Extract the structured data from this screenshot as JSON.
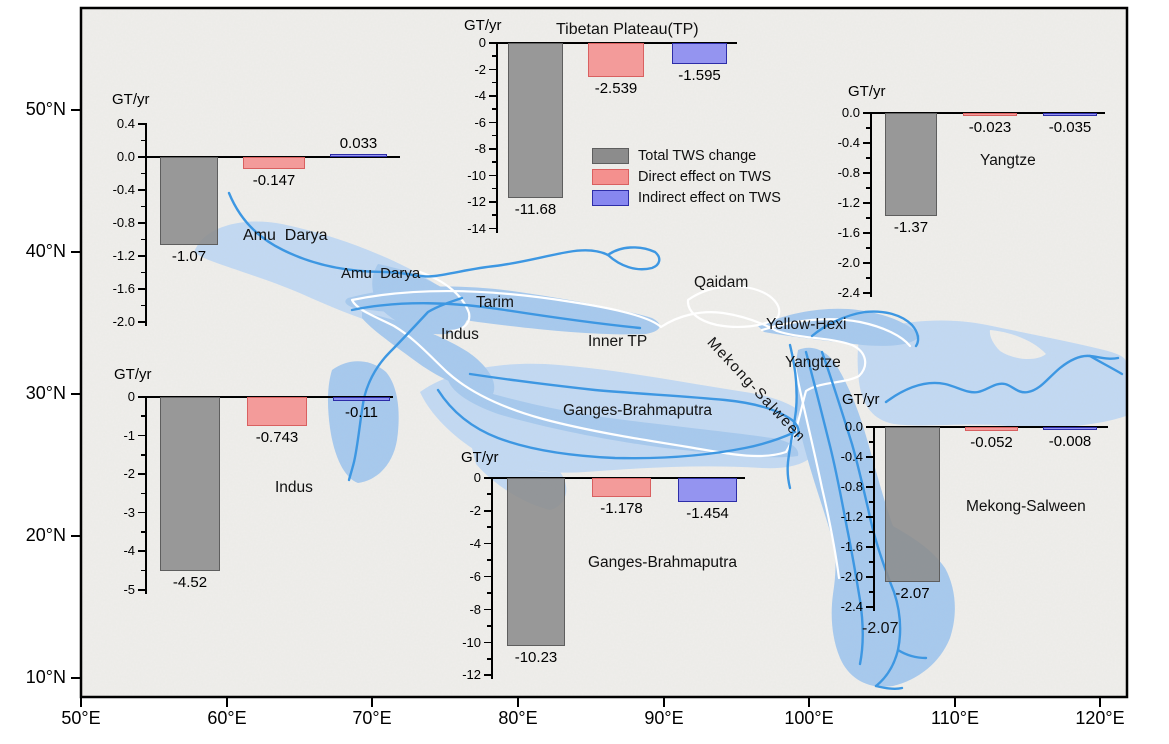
{
  "figure": {
    "x_axis": {
      "ticks": [
        "50°E",
        "60°E",
        "70°E",
        "80°E",
        "90°E",
        "100°E",
        "110°E",
        "120°E"
      ]
    },
    "y_axis": {
      "ticks": [
        "50°N",
        "40°N",
        "30°N",
        "20°N",
        "10°N"
      ]
    },
    "unit_label": "GT/yr"
  },
  "legend": {
    "items": [
      {
        "id": "total",
        "label": "Total TWS change",
        "fill": "#8C8C8C",
        "border": "#5E5E5E"
      },
      {
        "id": "direct",
        "label": "Direct effect on TWS",
        "fill": "#F4908E",
        "border": "#D96060"
      },
      {
        "id": "indirect",
        "label": "Indirect effect on TWS",
        "fill": "#8787F0",
        "border": "#2D2DA8"
      }
    ]
  },
  "map": {
    "labels": [
      {
        "id": "amu_darya_river",
        "text": "Amu  Darya"
      },
      {
        "id": "tarim",
        "text": "Tarim"
      },
      {
        "id": "indus",
        "text": "Indus"
      },
      {
        "id": "inner_tp",
        "text": "Inner TP"
      },
      {
        "id": "qaidam",
        "text": "Qaidam"
      },
      {
        "id": "yellow_hexi",
        "text": "Yellow-Hexi"
      },
      {
        "id": "yangtze",
        "text": "Yangtze"
      },
      {
        "id": "mekong_salween",
        "text": "Mekong-Salween"
      },
      {
        "id": "ganges_brahmaputra",
        "text": "Ganges-Brahmaputra"
      }
    ],
    "annotations": [
      {
        "id": "mekong_basin_value",
        "text": "-2.07"
      }
    ],
    "colors": {
      "terrain": "#EFEEEB",
      "basin_light": "#C2D9F3",
      "basin_medium": "#A6C9EE",
      "river": "#3D97E2",
      "boundary": "#FFFFFF"
    }
  },
  "chart_data": [
    {
      "id": "amu_darya",
      "type": "bar",
      "unit": "GT/yr",
      "region_label": "Amu  Darya",
      "ylim": [
        0.4,
        -2.0
      ],
      "yticks": [
        "0.4",
        "0.0",
        "-0.4",
        "-0.8",
        "-1.2",
        "-1.6",
        "-2.0"
      ],
      "series": [
        {
          "name": "Total TWS change",
          "value": -1.07,
          "label": "-1.07"
        },
        {
          "name": "Direct effect on TWS",
          "value": -0.147,
          "label": "-0.147"
        },
        {
          "name": "Indirect effect on TWS",
          "value": 0.033,
          "label": "0.033"
        }
      ]
    },
    {
      "id": "tibetan_plateau",
      "type": "bar",
      "unit": "GT/yr",
      "title": "Tibetan Plateau(TP)",
      "ylim": [
        0,
        -14
      ],
      "yticks": [
        "0",
        "-2",
        "-4",
        "-6",
        "-8",
        "-10",
        "-12",
        "-14"
      ],
      "series": [
        {
          "name": "Total TWS change",
          "value": -11.68,
          "label": "-11.68"
        },
        {
          "name": "Direct effect on TWS",
          "value": -2.539,
          "label": "-2.539"
        },
        {
          "name": "Indirect effect on TWS",
          "value": -1.595,
          "label": "-1.595"
        }
      ]
    },
    {
      "id": "yangtze",
      "type": "bar",
      "unit": "GT/yr",
      "region_label": "Yangtze",
      "ylim": [
        0,
        -2.4
      ],
      "yticks": [
        "0.0",
        "-0.4",
        "-0.8",
        "-1.2",
        "-1.6",
        "-2.0",
        "-2.4"
      ],
      "series": [
        {
          "name": "Total TWS change",
          "value": -1.37,
          "label": "-1.37"
        },
        {
          "name": "Direct effect on TWS",
          "value": -0.023,
          "label": "-0.023"
        },
        {
          "name": "Indirect effect on TWS",
          "value": -0.035,
          "label": "-0.035"
        }
      ]
    },
    {
      "id": "indus",
      "type": "bar",
      "unit": "GT/yr",
      "region_label": "Indus",
      "ylim": [
        0,
        -5
      ],
      "yticks": [
        "0",
        "-1",
        "-2",
        "-3",
        "-4",
        "-5"
      ],
      "series": [
        {
          "name": "Total TWS change",
          "value": -4.52,
          "label": "-4.52"
        },
        {
          "name": "Direct effect on TWS",
          "value": -0.743,
          "label": "-0.743"
        },
        {
          "name": "Indirect effect on TWS",
          "value": -0.11,
          "label": "-0.11"
        }
      ]
    },
    {
      "id": "ganges_brahmaputra",
      "type": "bar",
      "unit": "GT/yr",
      "region_label": "Ganges-Brahmaputra",
      "ylim": [
        0,
        -12
      ],
      "yticks": [
        "0",
        "-2",
        "-4",
        "-6",
        "-8",
        "-10",
        "-12"
      ],
      "series": [
        {
          "name": "Total TWS change",
          "value": -10.23,
          "label": "-10.23"
        },
        {
          "name": "Direct effect on TWS",
          "value": -1.178,
          "label": "-1.178"
        },
        {
          "name": "Indirect effect on TWS",
          "value": -1.454,
          "label": "-1.454"
        }
      ]
    },
    {
      "id": "mekong_salween",
      "type": "bar",
      "unit": "GT/yr",
      "region_label": "Mekong-Salween",
      "ylim": [
        0,
        -2.4
      ],
      "yticks": [
        "0.0",
        "-0.4",
        "-0.8",
        "-1.2",
        "-1.6",
        "-2.0",
        "-2.4"
      ],
      "series": [
        {
          "name": "Total TWS change",
          "value": -2.07,
          "label": "-2.07"
        },
        {
          "name": "Direct effect on TWS",
          "value": -0.052,
          "label": "-0.052"
        },
        {
          "name": "Indirect effect on TWS",
          "value": -0.008,
          "label": "-0.008"
        }
      ]
    }
  ]
}
